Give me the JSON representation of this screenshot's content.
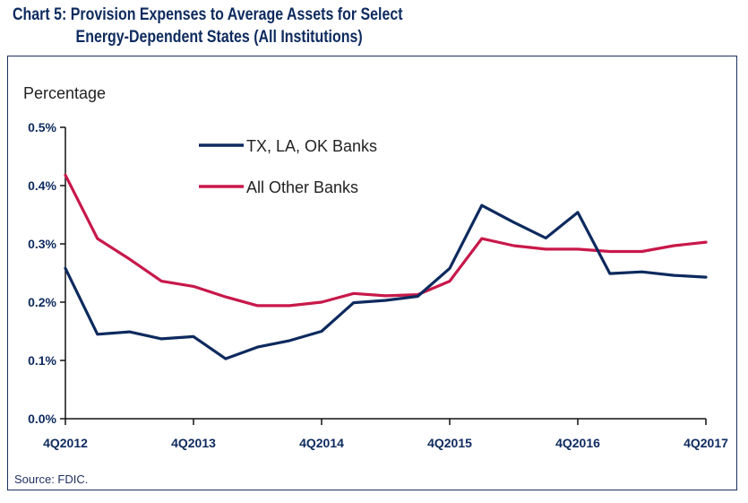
{
  "chart_data": {
    "type": "line",
    "title_line1": "Chart 5: Provision Expenses to Average Assets for Select",
    "title_line2": "Energy-Dependent States (All Institutions)",
    "ylabel": "Percentage",
    "xlabel": "",
    "source": "Source: FDIC.",
    "ylim": [
      0,
      0.5
    ],
    "yticks": [
      {
        "value": 0.0,
        "label": "0.0%"
      },
      {
        "value": 0.1,
        "label": "0.1%"
      },
      {
        "value": 0.2,
        "label": "0.2%"
      },
      {
        "value": 0.3,
        "label": "0.3%"
      },
      {
        "value": 0.4,
        "label": "0.4%"
      },
      {
        "value": 0.5,
        "label": "0.5%"
      }
    ],
    "x": [
      "4Q2012",
      "1Q2013",
      "2Q2013",
      "3Q2013",
      "4Q2013",
      "1Q2014",
      "2Q2014",
      "3Q2014",
      "4Q2014",
      "1Q2015",
      "2Q2015",
      "3Q2015",
      "4Q2015",
      "1Q2016",
      "2Q2016",
      "3Q2016",
      "4Q2016",
      "1Q2017",
      "2Q2017",
      "3Q2017",
      "4Q2017"
    ],
    "xtick_labels": [
      {
        "index": 0,
        "label": "4Q2012"
      },
      {
        "index": 4,
        "label": "4Q2013"
      },
      {
        "index": 8,
        "label": "4Q2014"
      },
      {
        "index": 12,
        "label": "4Q2015"
      },
      {
        "index": 16,
        "label": "4Q2016"
      },
      {
        "index": 20,
        "label": "4Q2017"
      }
    ],
    "series": [
      {
        "name": "TX, LA, OK Banks",
        "color": "#0d2a5e",
        "values": [
          0.258,
          0.145,
          0.149,
          0.137,
          0.141,
          0.103,
          0.123,
          0.134,
          0.15,
          0.199,
          0.203,
          0.21,
          0.258,
          0.366,
          0.337,
          0.31,
          0.354,
          0.249,
          0.252,
          0.246,
          0.243
        ]
      },
      {
        "name": "All Other Banks",
        "color": "#c8184a",
        "values": [
          0.418,
          0.309,
          0.274,
          0.236,
          0.227,
          0.209,
          0.194,
          0.194,
          0.2,
          0.215,
          0.211,
          0.213,
          0.236,
          0.309,
          0.297,
          0.291,
          0.291,
          0.287,
          0.287,
          0.297,
          0.303
        ]
      }
    ],
    "legend_position": "top-center"
  }
}
